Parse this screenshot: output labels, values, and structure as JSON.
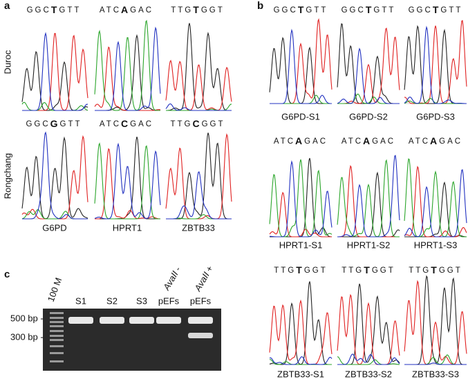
{
  "panel_a": {
    "label": "a",
    "row_labels": [
      "Duroc",
      "Rongchang"
    ],
    "rows": [
      [
        {
          "prefix": "GGC",
          "snp": "T",
          "suffix": "GTT"
        },
        {
          "prefix": "ATC",
          "snp": "A",
          "suffix": "GAC"
        },
        {
          "prefix": "TTG",
          "snp": "T",
          "suffix": "GGT"
        }
      ],
      [
        {
          "prefix": "GGC",
          "snp": "G",
          "suffix": "GTT"
        },
        {
          "prefix": "ATC",
          "snp": "C",
          "suffix": "GAC"
        },
        {
          "prefix": "TTG",
          "snp": "C",
          "suffix": "GGT"
        }
      ]
    ],
    "genes": [
      "G6PD",
      "HPRT1",
      "ZBTB33"
    ]
  },
  "panel_b": {
    "label": "b",
    "rows": [
      [
        {
          "seq": {
            "prefix": "GGC",
            "snp": "T",
            "suffix": "GTT"
          },
          "label": "G6PD-S1"
        },
        {
          "seq": {
            "prefix": "GGC",
            "snp": "T",
            "suffix": "GTT"
          },
          "label": "G6PD-S2"
        },
        {
          "seq": {
            "prefix": "GGC",
            "snp": "T",
            "suffix": "GTT"
          },
          "label": "G6PD-S3"
        }
      ],
      [
        {
          "seq": {
            "prefix": "ATC",
            "snp": "A",
            "suffix": "GAC"
          },
          "label": "HPRT1-S1"
        },
        {
          "seq": {
            "prefix": "ATC",
            "snp": "A",
            "suffix": "GAC"
          },
          "label": "HPRT1-S2"
        },
        {
          "seq": {
            "prefix": "ATC",
            "snp": "A",
            "suffix": "GAC"
          },
          "label": "HPRT1-S3"
        }
      ],
      [
        {
          "seq": {
            "prefix": "TTG",
            "snp": "T",
            "suffix": "GGT"
          },
          "label": "ZBTB33-S1"
        },
        {
          "seq": {
            "prefix": "TTG",
            "snp": "T",
            "suffix": "GGT"
          },
          "label": "ZBTB33-S2"
        },
        {
          "seq": {
            "prefix": "TTG",
            "snp": "T",
            "suffix": "GGT"
          },
          "label": "ZBTB33-S3"
        }
      ]
    ]
  },
  "panel_c": {
    "label": "c",
    "ladder": "100 M",
    "lanes": [
      "S1",
      "S2",
      "S3",
      "pEFs",
      "pEFs"
    ],
    "enzymes": [
      {
        "enzyme": "AvaII",
        "sign": "-"
      },
      {
        "enzyme": "AvaII",
        "sign": "+"
      }
    ],
    "markers": [
      "500 bp -",
      "300 bp -"
    ]
  }
}
